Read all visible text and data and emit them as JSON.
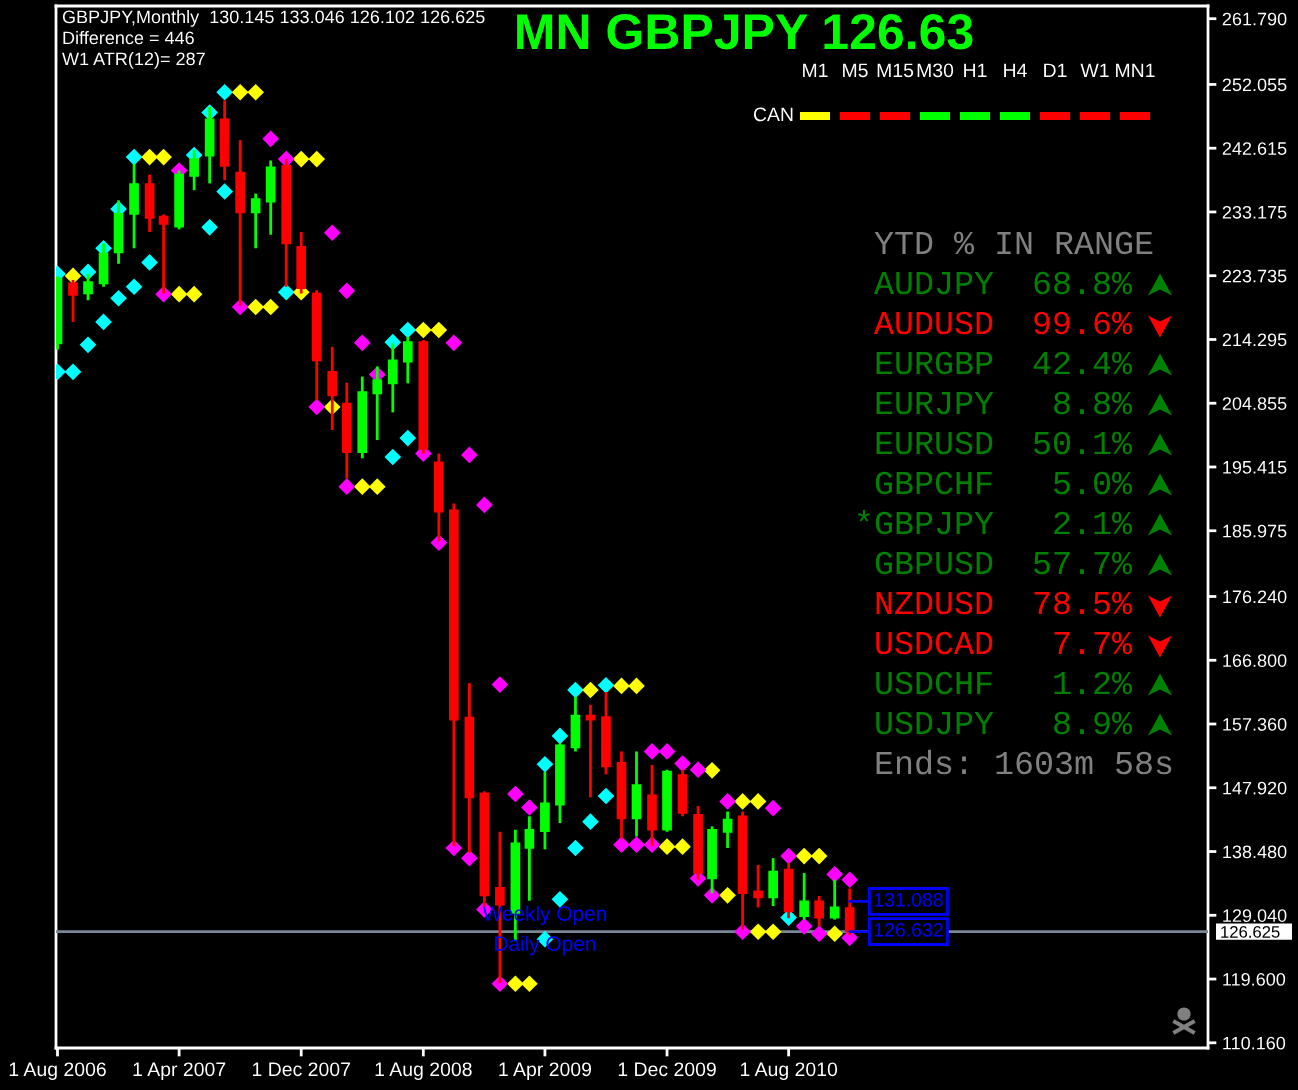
{
  "chart_data": [
    {
      "type": "candlestick",
      "title": "MN GBPJPY 126.63",
      "x": [
        "2006-08",
        "2006-09",
        "2006-10",
        "2006-11",
        "2006-12",
        "2007-01",
        "2007-02",
        "2007-03",
        "2007-04",
        "2007-05",
        "2007-06",
        "2007-07",
        "2007-08",
        "2007-09",
        "2007-10",
        "2007-11",
        "2007-12",
        "2008-01",
        "2008-02",
        "2008-03",
        "2008-04",
        "2008-05",
        "2008-06",
        "2008-07",
        "2008-08",
        "2008-09",
        "2008-10",
        "2008-11",
        "2008-12",
        "2009-01",
        "2009-02",
        "2009-03",
        "2009-04",
        "2009-05",
        "2009-06",
        "2009-07",
        "2009-08",
        "2009-09",
        "2009-10",
        "2009-11",
        "2009-12",
        "2010-01",
        "2010-02",
        "2010-03",
        "2010-04",
        "2010-05",
        "2010-06",
        "2010-07",
        "2010-08",
        "2010-09",
        "2010-10",
        "2010-11",
        "2010-12"
      ],
      "ohlc": [
        [
          213.7,
          223.6,
          212.8,
          223.3
        ],
        [
          222.6,
          223.1,
          216.9,
          220.9
        ],
        [
          221.1,
          224.0,
          220.1,
          222.8
        ],
        [
          222.6,
          228.5,
          222.1,
          227.0
        ],
        [
          227.2,
          234.9,
          225.5,
          232.9
        ],
        [
          232.9,
          240.3,
          227.8,
          237.3
        ],
        [
          237.3,
          238.7,
          230.2,
          232.3
        ],
        [
          232.5,
          232.8,
          221.1,
          231.4
        ],
        [
          231.0,
          239.3,
          230.6,
          238.7
        ],
        [
          238.5,
          242.3,
          236.4,
          241.0
        ],
        [
          241.5,
          248.7,
          237.4,
          246.9
        ],
        [
          246.9,
          249.7,
          237.9,
          240.0
        ],
        [
          239.0,
          243.8,
          219.3,
          233.1
        ],
        [
          233.1,
          235.9,
          227.8,
          235.1
        ],
        [
          234.7,
          240.8,
          229.8,
          239.8
        ],
        [
          240.0,
          241.0,
          222.1,
          228.5
        ],
        [
          228.0,
          230.2,
          221.1,
          221.9
        ],
        [
          221.1,
          221.6,
          205.3,
          211.2
        ],
        [
          209.5,
          213.2,
          200.9,
          206.0
        ],
        [
          204.8,
          207.9,
          193.7,
          197.6
        ],
        [
          197.6,
          208.8,
          196.7,
          206.5
        ],
        [
          206.3,
          210.3,
          199.4,
          208.3
        ],
        [
          207.8,
          213.7,
          203.5,
          211.2
        ],
        [
          211.0,
          214.7,
          207.8,
          213.9
        ],
        [
          213.9,
          214.2,
          197.4,
          198.1
        ],
        [
          196.1,
          197.4,
          184.4,
          188.8
        ],
        [
          189.0,
          190.0,
          139.3,
          158.0
        ],
        [
          158.3,
          163.4,
          138.3,
          146.5
        ],
        [
          147.1,
          147.4,
          129.9,
          132.0
        ],
        [
          133.1,
          141.4,
          119.0,
          130.6
        ],
        [
          129.4,
          141.7,
          125.2,
          139.7
        ],
        [
          139.0,
          143.7,
          131.2,
          141.7
        ],
        [
          141.5,
          150.3,
          138.8,
          145.6
        ],
        [
          145.4,
          154.5,
          142.7,
          154.2
        ],
        [
          153.9,
          161.4,
          153.3,
          158.6
        ],
        [
          158.6,
          160.2,
          146.5,
          158.0
        ],
        [
          158.4,
          162.1,
          149.9,
          151.1
        ],
        [
          151.6,
          153.3,
          140.4,
          143.4
        ],
        [
          143.4,
          153.3,
          140.7,
          148.3
        ],
        [
          146.8,
          151.3,
          139.3,
          141.7
        ],
        [
          141.7,
          150.6,
          141.4,
          150.3
        ],
        [
          149.8,
          150.6,
          143.7,
          144.2
        ],
        [
          143.9,
          145.2,
          134.3,
          135.3
        ],
        [
          134.5,
          142.2,
          132.3,
          141.7
        ],
        [
          141.4,
          144.4,
          139.0,
          143.2
        ],
        [
          143.7,
          144.4,
          126.9,
          132.3
        ],
        [
          132.6,
          136.5,
          130.2,
          131.7
        ],
        [
          131.7,
          137.5,
          130.4,
          135.5
        ],
        [
          135.8,
          136.8,
          128.6,
          129.6
        ],
        [
          128.9,
          135.3,
          128.4,
          131.1
        ],
        [
          131.1,
          131.9,
          127.4,
          128.7
        ],
        [
          128.7,
          134.3,
          128.4,
          130.2
        ],
        [
          130.1,
          133.0,
          126.1,
          126.6
        ]
      ],
      "colors": [
        "#00ff00",
        "#ff0000",
        "#00ff00",
        "#00ff00",
        "#00ff00",
        "#00ff00",
        "#ff0000",
        "#ff0000",
        "#00ff00",
        "#00ff00",
        "#00ff00",
        "#ff0000",
        "#ff0000",
        "#00ff00",
        "#00ff00",
        "#ff0000",
        "#ff0000",
        "#ff0000",
        "#ff0000",
        "#ff0000",
        "#00ff00",
        "#00ff00",
        "#00ff00",
        "#00ff00",
        "#ff0000",
        "#ff0000",
        "#ff0000",
        "#ff0000",
        "#ff0000",
        "#ff0000",
        "#00ff00",
        "#00ff00",
        "#00ff00",
        "#00ff00",
        "#00ff00",
        "#ff0000",
        "#ff0000",
        "#ff0000",
        "#00ff00",
        "#ff0000",
        "#00ff00",
        "#ff0000",
        "#ff0000",
        "#00ff00",
        "#00ff00",
        "#ff0000",
        "#ff0000",
        "#00ff00",
        "#ff0000",
        "#00ff00",
        "#ff0000",
        "#00ff00",
        "#ff0000"
      ],
      "series": [
        {
          "type": "scatter",
          "color": "#00ffff",
          "x": [
            "2006-08",
            "2006-08",
            "2006-09",
            "2006-10",
            "2006-10",
            "2006-11",
            "2006-11",
            "2006-12",
            "2006-12",
            "2007-01",
            "2007-01",
            "2007-02",
            "2007-05",
            "2007-06",
            "2007-06",
            "2007-07",
            "2007-07",
            "2007-11",
            "2008-06",
            "2008-06",
            "2008-07",
            "2008-07",
            "2009-04",
            "2009-04",
            "2009-05",
            "2009-05",
            "2009-06",
            "2009-06",
            "2009-07",
            "2009-08",
            "2009-08",
            "2010-08"
          ],
          "values": [
            224.0,
            209.5,
            209.5,
            224.3,
            213.5,
            227.8,
            216.9,
            233.6,
            220.4,
            241.3,
            222.1,
            225.7,
            241.6,
            247.9,
            230.9,
            250.9,
            236.2,
            221.3,
            213.9,
            196.9,
            215.7,
            199.7,
            151.4,
            125.5,
            155.6,
            131.4,
            162.4,
            139.0,
            142.9,
            163.1,
            146.7,
            128.7
          ]
        },
        {
          "type": "scatter",
          "color": "#ffff00",
          "x": [
            "2006-09",
            "2007-02",
            "2007-03",
            "2007-04",
            "2007-05",
            "2007-08",
            "2007-09",
            "2007-09",
            "2007-10",
            "2007-12",
            "2007-12",
            "2008-01",
            "2008-02",
            "2008-04",
            "2008-05",
            "2008-08",
            "2008-09",
            "2009-02",
            "2009-03",
            "2009-07",
            "2009-09",
            "2009-10",
            "2009-12",
            "2010-01",
            "2010-03",
            "2010-04",
            "2010-05",
            "2010-06",
            "2010-06",
            "2010-07",
            "2010-09",
            "2010-10",
            "2010-11"
          ],
          "values": [
            223.7,
            241.3,
            241.3,
            221.0,
            221.0,
            250.9,
            250.9,
            219.1,
            219.1,
            241.0,
            221.3,
            241.0,
            204.3,
            192.5,
            192.5,
            215.7,
            215.7,
            118.9,
            118.9,
            162.4,
            163.0,
            163.0,
            139.2,
            139.2,
            150.5,
            132.0,
            145.9,
            145.9,
            126.6,
            126.6,
            137.8,
            137.8,
            126.3
          ]
        },
        {
          "type": "scatter",
          "color": "#ff00ff",
          "x": [
            "2007-03",
            "2007-04",
            "2007-08",
            "2007-10",
            "2007-11",
            "2008-01",
            "2008-02",
            "2008-03",
            "2008-03",
            "2008-04",
            "2008-05",
            "2008-08",
            "2008-09",
            "2008-10",
            "2008-10",
            "2008-11",
            "2008-11",
            "2008-12",
            "2008-12",
            "2009-01",
            "2009-01",
            "2009-02",
            "2009-03",
            "2009-09",
            "2009-10",
            "2009-11",
            "2009-11",
            "2009-12",
            "2010-01",
            "2010-02",
            "2010-02",
            "2010-03",
            "2010-04",
            "2010-05",
            "2010-07",
            "2010-08",
            "2010-09",
            "2010-10",
            "2010-11",
            "2010-12",
            "2010-12"
          ],
          "values": [
            221.0,
            239.3,
            219.1,
            244.0,
            241.0,
            204.3,
            230.1,
            221.5,
            192.5,
            213.8,
            209.1,
            197.4,
            184.2,
            213.8,
            139.0,
            197.2,
            137.5,
            189.8,
            129.9,
            163.2,
            118.9,
            147.0,
            145.0,
            139.5,
            139.5,
            153.3,
            139.5,
            153.3,
            151.5,
            150.6,
            134.5,
            132.0,
            145.9,
            126.6,
            144.9,
            137.8,
            127.4,
            126.3,
            135.1,
            134.3,
            125.7
          ]
        }
      ],
      "marker": "diamond",
      "xlim": [
        "2006-07-29",
        "2012-11-16"
      ],
      "xticks": [
        {
          "value": "2006-08",
          "label": "1 Aug 2006"
        },
        {
          "value": "2007-04",
          "label": "1 Apr 2007"
        },
        {
          "value": "2007-12",
          "label": "1 Dec 2007"
        },
        {
          "value": "2008-08",
          "label": "1 Aug 2008"
        },
        {
          "value": "2009-04",
          "label": "1 Apr 2009"
        },
        {
          "value": "2009-12",
          "label": "1 Dec 2009"
        },
        {
          "value": "2010-08",
          "label": "1 Aug 2010"
        }
      ],
      "ylim": [
        109.39,
        263.67
      ],
      "yticks": [
        {
          "value": 261.79,
          "label": "261.790"
        },
        {
          "value": 252.055,
          "label": "252.055"
        },
        {
          "value": 242.615,
          "label": "242.615"
        },
        {
          "value": 233.175,
          "label": "233.175"
        },
        {
          "value": 223.735,
          "label": "223.735"
        },
        {
          "value": 214.295,
          "label": "214.295"
        },
        {
          "value": 204.855,
          "label": "204.855"
        },
        {
          "value": 195.415,
          "label": "195.415"
        },
        {
          "value": 185.975,
          "label": "185.975"
        },
        {
          "value": 176.24,
          "label": "176.240"
        },
        {
          "value": 166.8,
          "label": "166.800"
        },
        {
          "value": 157.36,
          "label": "157.360"
        },
        {
          "value": 147.92,
          "label": "147.920"
        },
        {
          "value": 138.48,
          "label": "138.480"
        },
        {
          "value": 129.04,
          "label": "129.040"
        },
        {
          "value": 119.6,
          "label": "119.600"
        },
        {
          "value": 110.16,
          "label": "110.160"
        }
      ],
      "ref_lines": [
        {
          "axis": "y",
          "value": 126.625,
          "label": "126.625",
          "color": "#778899"
        }
      ],
      "annotations": [
        "GBPJPY,Monthly  130.145 133.046 126.102 126.625",
        "Difference = 446",
        "W1 ATR(12)= 287",
        {
          "text": "Weekly Open",
          "x": "2009-04",
          "y": 131.088
        },
        {
          "text": "Daily Open",
          "x": "2009-04",
          "y": 126.632
        },
        {
          "text": "131.088",
          "x": "2010-12",
          "y": 131.088
        },
        {
          "text": "126.632",
          "x": "2010-12",
          "y": 126.632
        }
      ]
    },
    {
      "type": "other",
      "categories": [
        "M1",
        "M5",
        "M15",
        "M30",
        "H1",
        "H4",
        "D1",
        "W1",
        "MN1"
      ],
      "y_categories": [
        "CAN"
      ],
      "colors": [
        "#ffff00",
        "#ff0000",
        "#ff0000",
        "#00ff00",
        "#00ff00",
        "#00ff00",
        "#ff0000",
        "#ff0000",
        "#ff0000"
      ]
    },
    {
      "type": "other",
      "title": "YTD % IN RANGE",
      "categories": [
        "AUDJPY",
        "AUDUSD",
        "EURGBP",
        "EURJPY",
        "EURUSD",
        "GBPCHF",
        "*GBPJPY",
        "GBPUSD",
        "NZDUSD",
        "USDCAD",
        "USDCHF",
        "USDJPY"
      ],
      "value_labels": [
        "68.8%",
        "99.6%",
        "42.4%",
        "8.8%",
        "50.1%",
        "5.0%",
        "2.1%",
        "57.7%",
        "78.5%",
        "7.7%",
        "1.2%",
        "8.9%"
      ],
      "colors": [
        "#008000",
        "#ff0000",
        "#008000",
        "#008000",
        "#008000",
        "#008000",
        "#008000",
        "#008000",
        "#ff0000",
        "#ff0000",
        "#008000",
        "#008000"
      ],
      "annotations": [
        "Ends: 1603m 58s"
      ]
    }
  ]
}
